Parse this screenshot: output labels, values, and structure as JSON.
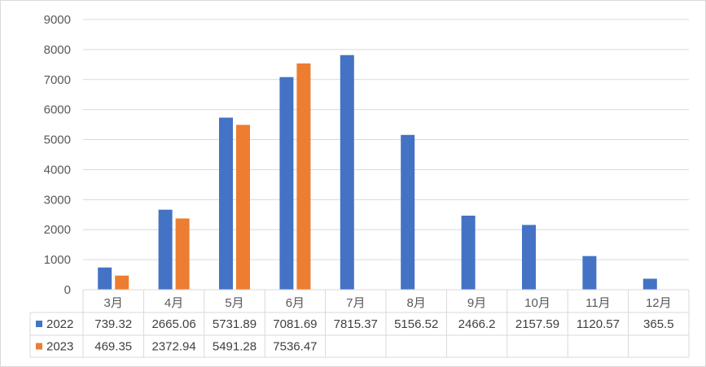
{
  "chart_data": {
    "type": "bar",
    "categories": [
      "3月",
      "4月",
      "5月",
      "6月",
      "7月",
      "8月",
      "9月",
      "10月",
      "11月",
      "12月"
    ],
    "series": [
      {
        "name": "2022",
        "color": "#4472C4",
        "values": [
          739.32,
          2665.06,
          5731.89,
          7081.69,
          7815.37,
          5156.52,
          2466.2,
          2157.59,
          1120.57,
          365.5
        ],
        "labels": [
          "739.32",
          "2665.06",
          "5731.89",
          "7081.69",
          "7815.37",
          "5156.52",
          "2466.2",
          "2157.59",
          "1120.57",
          "365.5"
        ]
      },
      {
        "name": "2023",
        "color": "#ED7D31",
        "values": [
          469.35,
          2372.94,
          5491.28,
          7536.47,
          null,
          null,
          null,
          null,
          null,
          null
        ],
        "labels": [
          "469.35",
          "2372.94",
          "5491.28",
          "7536.47",
          "",
          "",
          "",
          "",
          "",
          ""
        ]
      }
    ],
    "y_ticks": [
      "0",
      "1000",
      "2000",
      "3000",
      "4000",
      "5000",
      "6000",
      "7000",
      "8000",
      "9000"
    ],
    "ylim": [
      0,
      9000
    ],
    "grid": true,
    "legend": "data-table"
  }
}
